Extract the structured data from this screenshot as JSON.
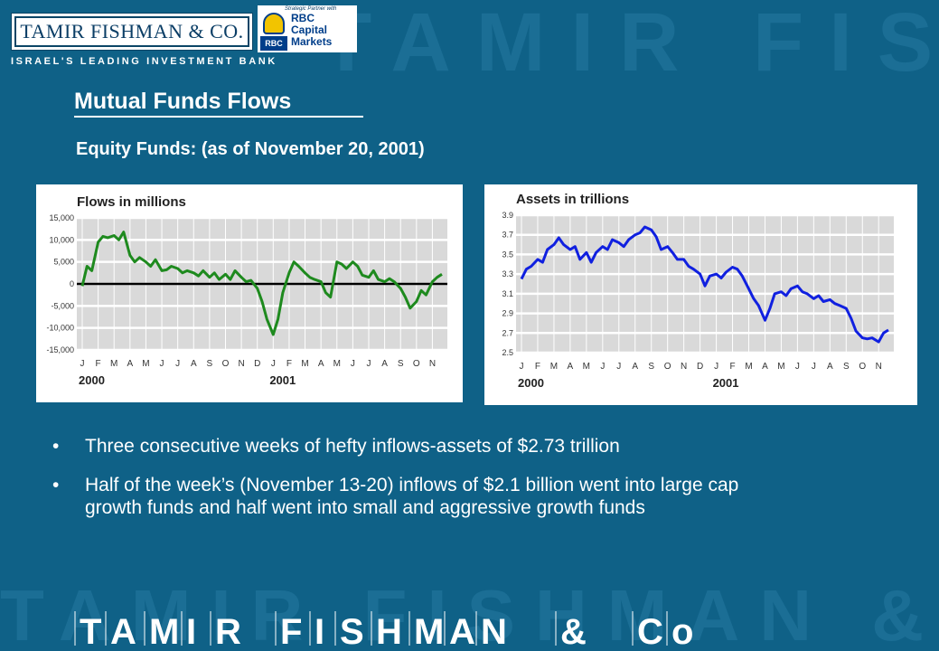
{
  "header": {
    "logo_text": "TAMIR FISHMAN & CO.",
    "tagline": "ISRAEL'S LEADING INVESTMENT BANK",
    "partner": {
      "caption": "Strategic Partner with",
      "badge": "RBC",
      "line1": "RBC",
      "line2": "Capital",
      "line3": "Markets"
    }
  },
  "title": "Mutual Funds Flows",
  "subtitle": "Equity Funds: (as of November 20, 2001)",
  "background_text": {
    "top": "TAMIR FISHMAN",
    "bottom_ghost": "TAMIR FISHMAN &",
    "bottom_letters": [
      "T",
      "A",
      "M",
      "I",
      "R",
      "F",
      "I",
      "S",
      "H",
      "M",
      "A",
      "N",
      "&",
      "C",
      "o"
    ]
  },
  "bullets": [
    "Three consecutive weeks of hefty inflows-assets of $2.73 trillion",
    "Half of the week’s (November 13-20) inflows of $2.1 billion went into large cap growth funds and half went into small and aggressive growth funds"
  ],
  "chart_data": [
    {
      "type": "line",
      "title": "Flows in millions",
      "months": [
        "J",
        "F",
        "M",
        "A",
        "M",
        "J",
        "J",
        "A",
        "S",
        "O",
        "N",
        "D",
        "J",
        "F",
        "M",
        "A",
        "M",
        "J",
        "J",
        "A",
        "S",
        "O",
        "N"
      ],
      "year_labels": [
        "2000",
        "2001"
      ],
      "yticks": [
        "15,000",
        "10,000",
        "5,000",
        "0",
        "-5,000",
        "-10,000",
        "-15,000"
      ],
      "ylim": [
        -15000,
        15000
      ],
      "color": "#1e8a1e",
      "x": [
        0,
        0.3,
        0.6,
        1,
        1.3,
        1.6,
        2,
        2.3,
        2.6,
        3,
        3.3,
        3.6,
        4,
        4.3,
        4.6,
        5,
        5.3,
        5.6,
        6,
        6.3,
        6.6,
        7,
        7.3,
        7.6,
        8,
        8.3,
        8.6,
        9,
        9.3,
        9.6,
        10,
        10.3,
        10.6,
        11,
        11.3,
        11.6,
        12,
        12.3,
        12.6,
        13,
        13.3,
        13.6,
        14,
        14.3,
        14.6,
        15,
        15.3,
        15.6,
        16,
        16.3,
        16.6,
        17,
        17.3,
        17.6,
        18,
        18.3,
        18.6,
        19,
        19.3,
        19.6,
        20,
        20.3,
        20.6,
        21,
        21.3,
        21.6,
        22,
        22.3,
        22.6
      ],
      "values": [
        -500,
        4000,
        3000,
        9500,
        10800,
        10500,
        11000,
        10000,
        11800,
        6500,
        5000,
        6000,
        5000,
        4000,
        5500,
        3000,
        3200,
        4000,
        3500,
        2500,
        3000,
        2500,
        1800,
        3000,
        1500,
        2500,
        1000,
        2200,
        1000,
        3000,
        1500,
        500,
        800,
        -1000,
        -4000,
        -8000,
        -11500,
        -8000,
        -2000,
        2500,
        5000,
        4000,
        2500,
        1500,
        1000,
        500,
        -2000,
        -3000,
        5000,
        4500,
        3500,
        5000,
        4000,
        2000,
        1500,
        3000,
        1000,
        500,
        1200,
        500,
        -1000,
        -3000,
        -5500,
        -4000,
        -1500,
        -2500,
        500,
        1500,
        2200
      ]
    },
    {
      "type": "line",
      "title": "Assets in trillions",
      "months": [
        "J",
        "F",
        "M",
        "A",
        "M",
        "J",
        "J",
        "A",
        "S",
        "O",
        "N",
        "D",
        "J",
        "F",
        "M",
        "A",
        "M",
        "J",
        "J",
        "A",
        "S",
        "O",
        "N"
      ],
      "year_labels": [
        "2000",
        "2001"
      ],
      "yticks": [
        "3.9",
        "3.7",
        "3.5",
        "3.3",
        "3.1",
        "2.9",
        "2.7",
        "2.5"
      ],
      "ylim": [
        2.5,
        3.9
      ],
      "color": "#1020e0",
      "x": [
        0,
        0.3,
        0.6,
        1,
        1.3,
        1.6,
        2,
        2.3,
        2.6,
        3,
        3.3,
        3.6,
        4,
        4.3,
        4.6,
        5,
        5.3,
        5.6,
        6,
        6.3,
        6.6,
        7,
        7.3,
        7.6,
        8,
        8.3,
        8.6,
        9,
        9.3,
        9.6,
        10,
        10.3,
        10.6,
        11,
        11.3,
        11.6,
        12,
        12.3,
        12.6,
        13,
        13.3,
        13.6,
        14,
        14.3,
        14.6,
        15,
        15.3,
        15.6,
        16,
        16.3,
        16.6,
        17,
        17.3,
        17.6,
        18,
        18.3,
        18.6,
        19,
        19.3,
        19.6,
        20,
        20.3,
        20.6,
        21,
        21.3,
        21.6,
        22,
        22.3,
        22.6
      ],
      "values": [
        3.25,
        3.35,
        3.38,
        3.45,
        3.42,
        3.55,
        3.6,
        3.67,
        3.6,
        3.55,
        3.58,
        3.45,
        3.52,
        3.42,
        3.52,
        3.58,
        3.55,
        3.65,
        3.62,
        3.58,
        3.65,
        3.7,
        3.72,
        3.78,
        3.75,
        3.68,
        3.55,
        3.58,
        3.52,
        3.45,
        3.45,
        3.38,
        3.35,
        3.3,
        3.18,
        3.28,
        3.3,
        3.26,
        3.32,
        3.37,
        3.35,
        3.28,
        3.15,
        3.05,
        2.98,
        2.83,
        2.95,
        3.1,
        3.12,
        3.08,
        3.15,
        3.18,
        3.12,
        3.1,
        3.05,
        3.08,
        3.02,
        3.04,
        3.0,
        2.98,
        2.95,
        2.85,
        2.72,
        2.65,
        2.64,
        2.65,
        2.61,
        2.7,
        2.73
      ]
    }
  ]
}
